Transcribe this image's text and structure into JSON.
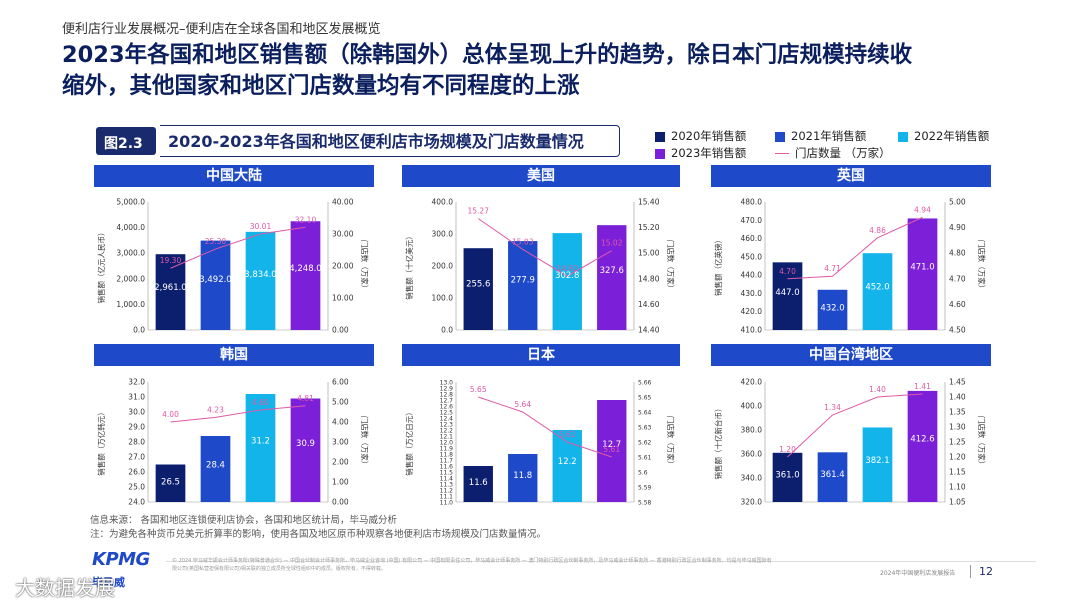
{
  "breadcrumb": "便利店行业发展概况–便利店在全球各国和地区发展概览",
  "headline_line1": "2023年各国和地区销售额（除韩国外）总体呈现上升的趋势，除日本门店规模持续收",
  "headline_line2": "缩外，其他国家和地区门店数量均有不同程度的上涨",
  "figure": {
    "number": "图2.3",
    "title": "2020-2023年各国和地区便利店市场规模及门店数量情况"
  },
  "legend": {
    "s2020": "2020年销售额",
    "s2021": "2021年销售额",
    "s2022": "2022年销售额",
    "s2023": "2023年销售额",
    "stores": "门店数量 （万家）"
  },
  "colors": {
    "y2020": "#0b1f6e",
    "y2021": "#1e49c8",
    "y2022": "#12b4ea",
    "y2023": "#7c1fd8",
    "line": "#e05aa6",
    "header": "#1e49c8"
  },
  "chart_data": [
    {
      "type": "bar+line",
      "title": "中国大陆",
      "categories": [
        "2020",
        "2021",
        "2022",
        "2023"
      ],
      "values": [
        2961.0,
        3492.0,
        3834.0,
        4248.0
      ],
      "value_labels": [
        "2,961.0",
        "3,492.0",
        "3,834.0",
        "4,248.0"
      ],
      "stores": [
        19.3,
        25.3,
        30.01,
        32.1
      ],
      "store_labels": [
        "19.30",
        "25.30",
        "30.01",
        "32.10"
      ],
      "ylabel": "销售额（亿元人民币）",
      "y2label": "门店数（万家）",
      "ylim": [
        0,
        5000
      ],
      "y2lim": [
        0,
        40
      ],
      "yticks": [
        "0.0",
        "1,000.0",
        "2,000.0",
        "3,000.0",
        "4,000.0",
        "5,000.0"
      ],
      "y2ticks": [
        "0.00",
        "10.00",
        "20.00",
        "30.00",
        "40.00"
      ]
    },
    {
      "type": "bar+line",
      "title": "美国",
      "categories": [
        "2020",
        "2021",
        "2022",
        "2023"
      ],
      "values": [
        255.6,
        277.9,
        302.8,
        327.6
      ],
      "value_labels": [
        "255.6",
        "277.9",
        "302.8",
        "327.6"
      ],
      "stores": [
        15.27,
        15.03,
        14.82,
        15.02
      ],
      "store_labels": [
        "15.27",
        "15.03",
        "14.82",
        "15.02"
      ],
      "ylabel": "销售额（十亿美元）",
      "y2label": "门店数（万家）",
      "ylim": [
        0,
        400
      ],
      "y2lim": [
        14.4,
        15.4
      ],
      "yticks": [
        "0.0",
        "100.0",
        "200.0",
        "300.0",
        "400.0"
      ],
      "y2ticks": [
        "14.40",
        "14.60",
        "14.80",
        "15.00",
        "15.20",
        "15.40"
      ]
    },
    {
      "type": "bar+line",
      "title": "英国",
      "categories": [
        "2020",
        "2021",
        "2022",
        "2023"
      ],
      "values": [
        447.0,
        432.0,
        452.0,
        471.0
      ],
      "value_labels": [
        "447.0",
        "432.0",
        "452.0",
        "471.0"
      ],
      "stores": [
        4.7,
        4.71,
        4.86,
        4.94
      ],
      "store_labels": [
        "4.70",
        "4.71",
        "4.86",
        "4.94"
      ],
      "ylabel": "销售额（亿英镑）",
      "y2label": "门店数（万家）",
      "ylim": [
        410,
        480
      ],
      "y2lim": [
        4.5,
        5.0
      ],
      "yticks": [
        "410.0",
        "420.0",
        "430.0",
        "440.0",
        "450.0",
        "460.0",
        "470.0",
        "480.0"
      ],
      "y2ticks": [
        "4.50",
        "4.60",
        "4.70",
        "4.80",
        "4.90",
        "5.00"
      ]
    },
    {
      "type": "bar+line",
      "title": "韩国",
      "categories": [
        "2020",
        "2021",
        "2022",
        "2023"
      ],
      "values": [
        26.5,
        28.4,
        31.2,
        30.9
      ],
      "value_labels": [
        "26.5",
        "28.4",
        "31.2",
        "30.9"
      ],
      "stores": [
        4.0,
        4.23,
        4.6,
        4.81
      ],
      "store_labels": [
        "4.00",
        "4.23",
        "4.60",
        "4.81"
      ],
      "ylabel": "销售额（万亿韩元）",
      "y2label": "门店数（万家）",
      "ylim": [
        24,
        32
      ],
      "y2lim": [
        0,
        6
      ],
      "yticks": [
        "24.0",
        "25.0",
        "26.0",
        "27.0",
        "28.0",
        "29.0",
        "30.0",
        "31.0",
        "32.0"
      ],
      "y2ticks": [
        "0.00",
        "1.00",
        "2.00",
        "3.00",
        "4.00",
        "5.00",
        "6.00"
      ]
    },
    {
      "type": "bar+line",
      "title": "日本",
      "categories": [
        "2020",
        "2021",
        "2022",
        "2023"
      ],
      "values": [
        11.6,
        11.8,
        12.2,
        12.7
      ],
      "value_labels": [
        "11.6",
        "11.8",
        "12.2",
        "12.7"
      ],
      "stores": [
        5.65,
        5.64,
        5.62,
        5.61
      ],
      "store_labels": [
        "5.65",
        "5.64",
        "5.62",
        "5.61"
      ],
      "ylabel": "销售额（万亿日元）",
      "y2label": "门店数（万家）",
      "ylim": [
        11.0,
        13.0
      ],
      "y2lim": [
        5.58,
        5.66
      ],
      "yticks": [
        "11.0",
        "11.1",
        "11.2",
        "11.3",
        "11.4",
        "11.5",
        "11.6",
        "11.7",
        "11.8",
        "11.9",
        "12.0",
        "12.1",
        "12.2",
        "12.3",
        "12.4",
        "12.5",
        "12.6",
        "12.7",
        "12.8",
        "12.9",
        "13.0"
      ],
      "y2ticks": [
        "5.58",
        "5.59",
        "5.6",
        "5.61",
        "5.62",
        "5.63",
        "5.64",
        "5.65",
        "5.66"
      ]
    },
    {
      "type": "bar+line",
      "title": "中国台湾地区",
      "categories": [
        "2020",
        "2021",
        "2022",
        "2023"
      ],
      "values": [
        361.0,
        361.4,
        382.1,
        412.6
      ],
      "value_labels": [
        "361.0",
        "361.4",
        "382.1",
        "412.6"
      ],
      "stores": [
        1.2,
        1.34,
        1.4,
        1.41
      ],
      "store_labels": [
        "1.20",
        "1.34",
        "1.40",
        "1.41"
      ],
      "ylabel": "销售额（十亿新台币）",
      "y2label": "门店数（万家）",
      "ylim": [
        320,
        420
      ],
      "y2lim": [
        1.05,
        1.45
      ],
      "yticks": [
        "320.0",
        "340.0",
        "360.0",
        "380.0",
        "400.0",
        "420.0"
      ],
      "y2ticks": [
        "1.05",
        "1.10",
        "1.15",
        "1.20",
        "1.25",
        "1.30",
        "1.35",
        "1.40",
        "1.45"
      ]
    }
  ],
  "source_line1": "信息来源： 各国和地区连锁便利店协会，各国和地区统计局，毕马威分析",
  "source_line2": "注：为避免各种货币兑美元折算率的影响，使用各国及地区原币种观察各地便利店市场规模及门店数量情况。",
  "legal": "© 2024 毕马威华振会计师事务所(特殊普通合伙) — 中国合伙制会计师事务所，毕马威企业咨询 (中国) 有限公司 — 中国有限责任公司，毕马威会计师事务所 — 澳门特别行政区合伙制事务所，及毕马威会计师事务所 — 香港特别行政区合伙制事务所，均是与毕马威国际有限公司(英国私营担保有限公司)相关联的独立成员所全球性组织中的成员。版权所有，不得转载。",
  "logo": "KPMG",
  "logo_sub": "毕马威",
  "report_name": "2024年中国便利店发展报告",
  "page_number": "12",
  "watermark": "大数据发展"
}
